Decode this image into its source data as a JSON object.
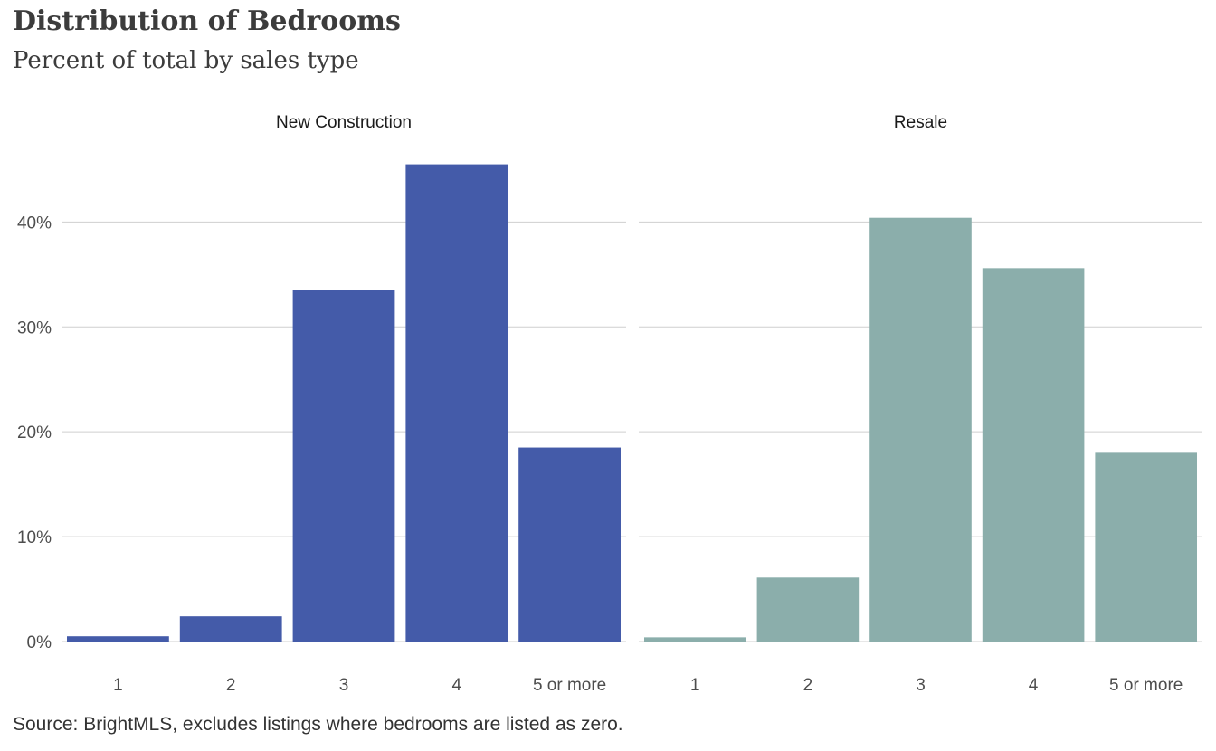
{
  "title": "Distribution of Bedrooms",
  "subtitle": "Percent of total by sales type",
  "caption": "Source: BrightMLS, excludes listings where bedrooms are listed as zero.",
  "chart_data": {
    "type": "bar",
    "categories": [
      "1",
      "2",
      "3",
      "4",
      "5 or more"
    ],
    "ylim": [
      0,
      46.5
    ],
    "yticks": [
      0,
      10,
      20,
      30,
      40
    ],
    "ytick_labels": [
      "0%",
      "10%",
      "20%",
      "30%",
      "40%"
    ],
    "grid": true,
    "legend": "none",
    "facets": [
      {
        "label": "New Construction",
        "color": "#445BA9",
        "values": [
          0.5,
          2.4,
          33.5,
          45.5,
          18.5
        ]
      },
      {
        "label": "Resale",
        "color": "#8BAEAB",
        "values": [
          0.4,
          6.1,
          40.4,
          35.6,
          18.0
        ]
      }
    ]
  }
}
